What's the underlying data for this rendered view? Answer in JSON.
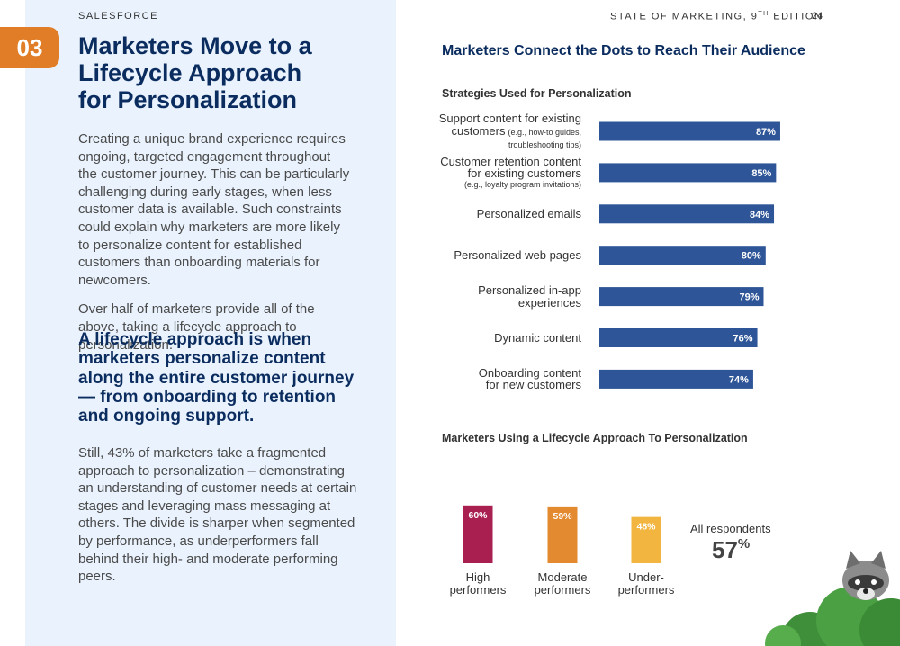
{
  "header": {
    "brand": "SALESFORCE",
    "edition": "STATE OF MARKETING, 9",
    "edition_sup": "TH",
    "edition_rest": "EDITION",
    "page": "24"
  },
  "section": {
    "number": "03",
    "title_lines": [
      "Marketers Move to a",
      "Lifecycle Approach",
      "for Personalization"
    ],
    "paragraphs": [
      "Creating a unique brand experience requires ongoing, targeted engagement throughout the customer journey. This can be particularly challenging during early stages, when less customer data is available. Such constraints could explain why marketers are more likely to personalize content for established customers than onboarding materials for newcomers.",
      "Over half of marketers provide all of the above, taking a lifecycle approach to personalization."
    ],
    "quote": "A lifecycle approach is when marketers personalize content along the entire customer journey — from onboarding to retention and ongoing support.",
    "closing": "Still, 43% of marketers take a fragmented approach to personalization – demonstrating an understanding of customer needs at certain stages and leveraging mass messaging at others. The divide is sharper when segmented by performance, as underperformers fall behind their high- and moderate performing peers."
  },
  "panel_title": "Marketers Connect the Dots to Reach Their Audience",
  "chart_data": [
    {
      "type": "hbar",
      "title": "Strategies Used for Personalization",
      "categories": [
        "Support content for existing customers",
        "Customer retention content for existing customers",
        "Personalized emails",
        "Personalized web pages",
        "Personalized in-app experiences",
        "Dynamic content",
        "Onboarding content for new customers"
      ],
      "notes": [
        "(e.g., how-to guides, troubleshooting tips)",
        "(e.g., loyalty program invitations)",
        null,
        null,
        null,
        null,
        null
      ],
      "values": [
        87,
        85,
        84,
        80,
        79,
        76,
        74
      ],
      "value_labels": [
        "87%",
        "85%",
        "84%",
        "80%",
        "79%",
        "76%",
        "74%"
      ],
      "color": "#2e5597",
      "xlim": [
        0,
        100
      ]
    },
    {
      "type": "bar",
      "title": "Marketers Using a Lifecycle Approach To Personalization",
      "categories": [
        "High performers",
        "Moderate performers",
        "Under-performers"
      ],
      "values": [
        60,
        59,
        48
      ],
      "value_labels": [
        "60%",
        "59%",
        "48%"
      ],
      "colors": [
        "#a81f50",
        "#e38a31",
        "#f2b53f"
      ],
      "ylim": [
        0,
        100
      ],
      "total": {
        "label": "All respondents",
        "value": 57,
        "unit": "%"
      }
    }
  ]
}
